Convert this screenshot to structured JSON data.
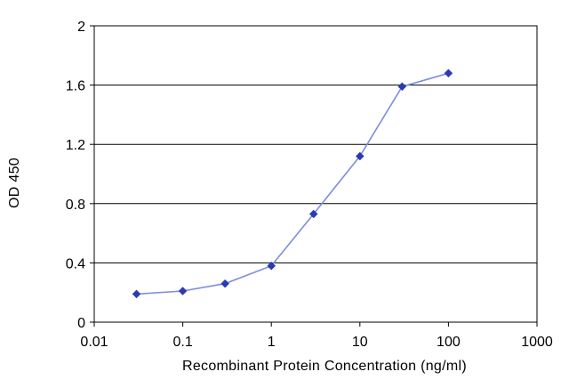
{
  "chart_data": {
    "type": "line",
    "title": "",
    "xlabel": "Recombinant Protein Concentration (ng/ml)",
    "ylabel": "OD 450",
    "x_scale": "log",
    "xlim": [
      0.01,
      1000
    ],
    "ylim": [
      0,
      2
    ],
    "x_ticks": [
      0.01,
      0.1,
      1,
      10,
      100,
      1000
    ],
    "x_tick_labels": [
      "0.01",
      "0.1",
      "1",
      "10",
      "100",
      "1000"
    ],
    "y_ticks": [
      0,
      0.4,
      0.8,
      1.2,
      1.6,
      2
    ],
    "y_tick_labels": [
      "0",
      "0.4",
      "0.8",
      "1.2",
      "1.6",
      "2"
    ],
    "grid": "horizontal",
    "legend": "none",
    "colors": {
      "series": "#2b3bb0",
      "line": "#7f8ce0",
      "grid": "#000000"
    },
    "series": [
      {
        "x": [
          0.03,
          0.1,
          0.3,
          1,
          3,
          10,
          30,
          100
        ],
        "y": [
          0.19,
          0.21,
          0.26,
          0.38,
          0.73,
          1.12,
          1.59,
          1.68
        ]
      }
    ]
  }
}
